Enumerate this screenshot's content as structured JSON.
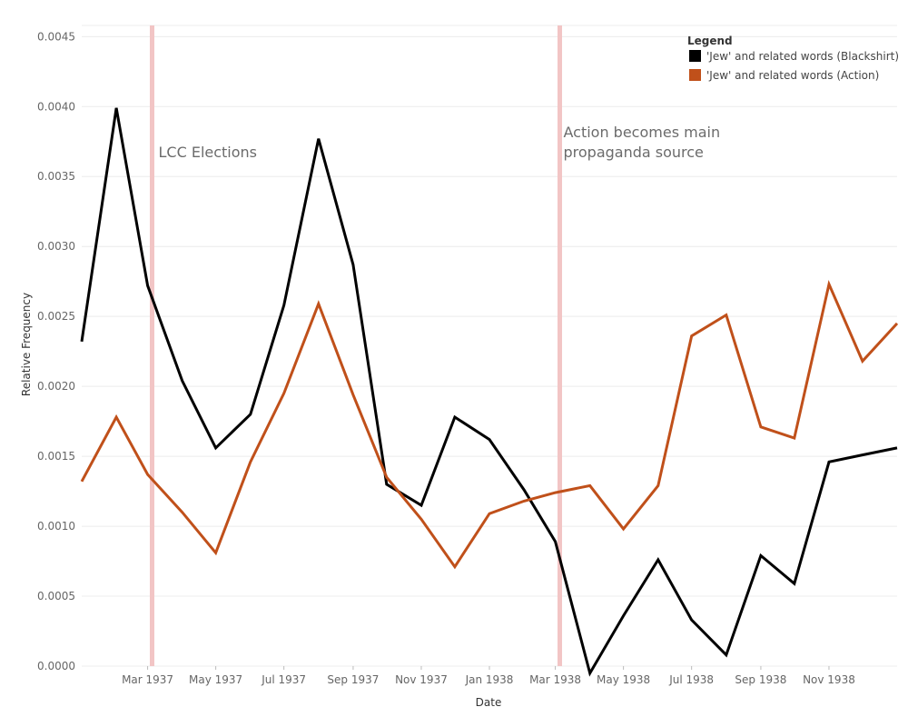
{
  "chart_data": {
    "type": "line",
    "xlabel": "Date",
    "ylabel": "Relative Frequency",
    "x_range": [
      "1937-01-01",
      "1939-01-01"
    ],
    "ylim": [
      0,
      0.00458
    ],
    "yticks": [
      "0.0000",
      "0.0005",
      "0.0010",
      "0.0015",
      "0.0020",
      "0.0025",
      "0.0030",
      "0.0035",
      "0.0040",
      "0.0045"
    ],
    "xticks": [
      {
        "date": "1937-03-01",
        "label": "Mar 1937"
      },
      {
        "date": "1937-05-01",
        "label": "May 1937"
      },
      {
        "date": "1937-07-01",
        "label": "Jul 1937"
      },
      {
        "date": "1937-09-01",
        "label": "Sep 1937"
      },
      {
        "date": "1937-11-01",
        "label": "Nov 1937"
      },
      {
        "date": "1938-01-01",
        "label": "Jan 1938"
      },
      {
        "date": "1938-03-01",
        "label": "Mar 1938"
      },
      {
        "date": "1938-05-01",
        "label": "May 1938"
      },
      {
        "date": "1938-07-01",
        "label": "Jul 1938"
      },
      {
        "date": "1938-09-01",
        "label": "Sep 1938"
      },
      {
        "date": "1938-11-01",
        "label": "Nov 1938"
      }
    ],
    "grid": true,
    "legend": {
      "title": "Legend",
      "position": "top-right"
    },
    "annotations": [
      {
        "date": "1937-03-05",
        "label": "LCC Elections"
      },
      {
        "date": "1938-03-05",
        "label": "Action becomes main propaganda source"
      }
    ],
    "series": [
      {
        "name": "'Jew' and related words (Blackshirt)",
        "color": "#000000",
        "points": [
          [
            "1937-01-01",
            0.00232
          ],
          [
            "1937-02-01",
            0.00399
          ],
          [
            "1937-03-01",
            0.00272
          ],
          [
            "1937-04-01",
            0.00204
          ],
          [
            "1937-05-01",
            0.00156
          ],
          [
            "1937-06-01",
            0.0018
          ],
          [
            "1937-07-01",
            0.00258
          ],
          [
            "1937-08-01",
            0.00377
          ],
          [
            "1937-09-01",
            0.00287
          ],
          [
            "1937-10-01",
            0.0013
          ],
          [
            "1937-11-01",
            0.00115
          ],
          [
            "1937-12-01",
            0.00178
          ],
          [
            "1938-01-01",
            0.00162
          ],
          [
            "1938-02-01",
            0.00126
          ],
          [
            "1938-03-01",
            0.00089
          ],
          [
            "1938-04-01",
            -5e-05
          ],
          [
            "1938-05-01",
            0.00036
          ],
          [
            "1938-06-01",
            0.00076
          ],
          [
            "1938-07-01",
            0.00033
          ],
          [
            "1938-08-01",
            8e-05
          ],
          [
            "1938-09-01",
            0.00079
          ],
          [
            "1938-10-01",
            0.00059
          ],
          [
            "1938-11-01",
            0.00146
          ],
          [
            "1938-12-01",
            0.00151
          ],
          [
            "1939-01-01",
            0.00156
          ]
        ]
      },
      {
        "name": "'Jew' and related words (Action)",
        "color": "#c0501a",
        "points": [
          [
            "1937-01-01",
            0.00132
          ],
          [
            "1937-02-01",
            0.00178
          ],
          [
            "1937-03-01",
            0.00137
          ],
          [
            "1937-04-01",
            0.0011
          ],
          [
            "1937-05-01",
            0.00081
          ],
          [
            "1937-06-01",
            0.00146
          ],
          [
            "1937-07-01",
            0.00195
          ],
          [
            "1937-08-01",
            0.00259
          ],
          [
            "1937-09-01",
            0.00194
          ],
          [
            "1937-10-01",
            0.00135
          ],
          [
            "1937-11-01",
            0.00105
          ],
          [
            "1937-12-01",
            0.00071
          ],
          [
            "1938-01-01",
            0.00109
          ],
          [
            "1938-02-01",
            0.00118
          ],
          [
            "1938-03-01",
            0.00124
          ],
          [
            "1938-04-01",
            0.00129
          ],
          [
            "1938-05-01",
            0.00098
          ],
          [
            "1938-06-01",
            0.00129
          ],
          [
            "1938-07-01",
            0.00236
          ],
          [
            "1938-08-01",
            0.00251
          ],
          [
            "1938-09-01",
            0.00171
          ],
          [
            "1938-10-01",
            0.00163
          ],
          [
            "1938-11-01",
            0.00273
          ],
          [
            "1938-12-01",
            0.00218
          ],
          [
            "1939-01-01",
            0.00245
          ]
        ]
      }
    ]
  }
}
